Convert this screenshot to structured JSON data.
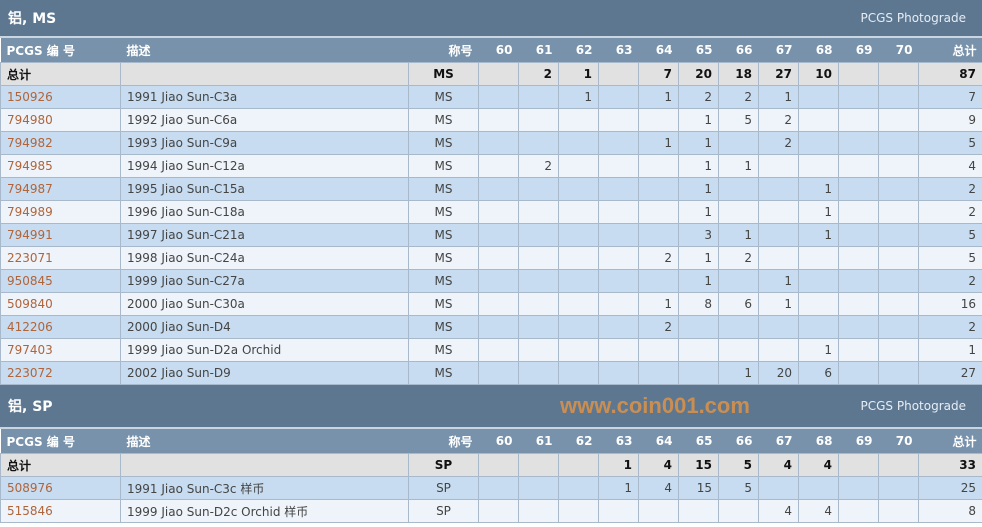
{
  "columns": {
    "id": "PCGS 编 号",
    "desc": "描述",
    "designation": "称号",
    "grades": [
      "60",
      "61",
      "62",
      "63",
      "64",
      "65",
      "66",
      "67",
      "68",
      "69",
      "70"
    ],
    "total": "总计"
  },
  "sections": [
    {
      "title": "铝, MS",
      "photograde": "PCGS Photograde",
      "total_row": {
        "label": "总计",
        "designation": "MS",
        "grades": [
          "",
          "2",
          "1",
          "",
          "7",
          "20",
          "18",
          "27",
          "10",
          "",
          ""
        ],
        "total": "87"
      },
      "rows": [
        {
          "id": "150926",
          "desc": "1991 Jiao Sun-C3a",
          "designation": "MS",
          "grades": [
            "",
            "",
            "1",
            "",
            "1",
            "2",
            "2",
            "1",
            "",
            "",
            ""
          ],
          "total": "7"
        },
        {
          "id": "794980",
          "desc": "1992 Jiao Sun-C6a",
          "designation": "MS",
          "grades": [
            "",
            "",
            "",
            "",
            "",
            "1",
            "5",
            "2",
            "",
            "",
            ""
          ],
          "total": "9"
        },
        {
          "id": "794982",
          "desc": "1993 Jiao Sun-C9a",
          "designation": "MS",
          "grades": [
            "",
            "",
            "",
            "",
            "1",
            "1",
            "",
            "2",
            "",
            "",
            ""
          ],
          "total": "5"
        },
        {
          "id": "794985",
          "desc": "1994 Jiao Sun-C12a",
          "designation": "MS",
          "grades": [
            "",
            "2",
            "",
            "",
            "",
            "1",
            "1",
            "",
            "",
            "",
            ""
          ],
          "total": "4"
        },
        {
          "id": "794987",
          "desc": "1995 Jiao Sun-C15a",
          "designation": "MS",
          "grades": [
            "",
            "",
            "",
            "",
            "",
            "1",
            "",
            "",
            "1",
            "",
            ""
          ],
          "total": "2"
        },
        {
          "id": "794989",
          "desc": "1996 Jiao Sun-C18a",
          "designation": "MS",
          "grades": [
            "",
            "",
            "",
            "",
            "",
            "1",
            "",
            "",
            "1",
            "",
            ""
          ],
          "total": "2"
        },
        {
          "id": "794991",
          "desc": "1997 Jiao Sun-C21a",
          "designation": "MS",
          "grades": [
            "",
            "",
            "",
            "",
            "",
            "3",
            "1",
            "",
            "1",
            "",
            ""
          ],
          "total": "5"
        },
        {
          "id": "223071",
          "desc": "1998 Jiao Sun-C24a",
          "designation": "MS",
          "grades": [
            "",
            "",
            "",
            "",
            "2",
            "1",
            "2",
            "",
            "",
            "",
            ""
          ],
          "total": "5"
        },
        {
          "id": "950845",
          "desc": "1999 Jiao Sun-C27a",
          "designation": "MS",
          "grades": [
            "",
            "",
            "",
            "",
            "",
            "1",
            "",
            "1",
            "",
            "",
            ""
          ],
          "total": "2"
        },
        {
          "id": "509840",
          "desc": "2000 Jiao Sun-C30a",
          "designation": "MS",
          "grades": [
            "",
            "",
            "",
            "",
            "1",
            "8",
            "6",
            "1",
            "",
            "",
            ""
          ],
          "total": "16"
        },
        {
          "id": "412206",
          "desc": "2000 Jiao Sun-D4",
          "designation": "MS",
          "grades": [
            "",
            "",
            "",
            "",
            "2",
            "",
            "",
            "",
            "",
            "",
            ""
          ],
          "total": "2"
        },
        {
          "id": "797403",
          "desc": "1999 Jiao Sun-D2a Orchid",
          "designation": "MS",
          "grades": [
            "",
            "",
            "",
            "",
            "",
            "",
            "",
            "",
            "1",
            "",
            ""
          ],
          "total": "1"
        },
        {
          "id": "223072",
          "desc": "2002 Jiao Sun-D9",
          "designation": "MS",
          "grades": [
            "",
            "",
            "",
            "",
            "",
            "",
            "1",
            "20",
            "6",
            "",
            ""
          ],
          "total": "27"
        }
      ]
    },
    {
      "title": "铝, SP",
      "photograde": "PCGS Photograde",
      "total_row": {
        "label": "总计",
        "designation": "SP",
        "grades": [
          "",
          "",
          "",
          "1",
          "4",
          "15",
          "5",
          "4",
          "4",
          "",
          ""
        ],
        "total": "33"
      },
      "rows": [
        {
          "id": "508976",
          "desc": "1991 Jiao Sun-C3c 样币",
          "designation": "SP",
          "grades": [
            "",
            "",
            "",
            "1",
            "4",
            "15",
            "5",
            "",
            "",
            "",
            ""
          ],
          "total": "25"
        },
        {
          "id": "515846",
          "desc": "1999 Jiao Sun-D2c Orchid 样币",
          "designation": "SP",
          "grades": [
            "",
            "",
            "",
            "",
            "",
            "",
            "",
            "4",
            "4",
            "",
            ""
          ],
          "total": "8"
        }
      ]
    }
  ],
  "watermark": "www.coin001.com",
  "colors": {
    "title_bar": "#5d7791",
    "header": "#7892ab",
    "row_odd": "#c7dcf0",
    "row_even": "#eef4fa",
    "total_row": "#e1e1e1",
    "link": "#b0643a"
  }
}
